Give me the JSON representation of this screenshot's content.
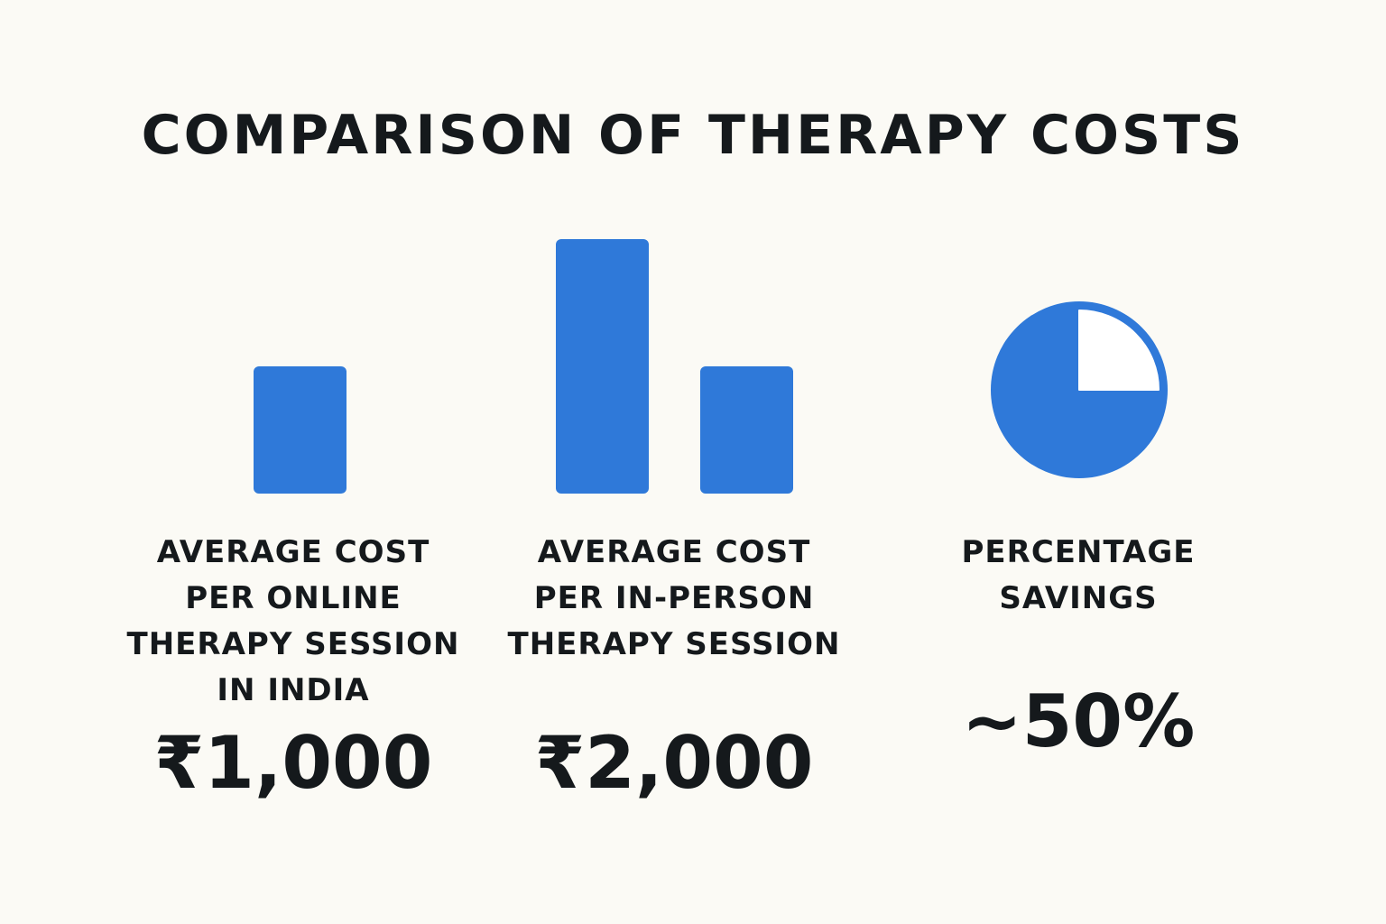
{
  "chart_data": {
    "type": "bar",
    "title": "COMPARISON OF THERAPY COSTS",
    "accent_color": "#2f79d9",
    "bars": [
      {
        "group": "online",
        "value": 1000
      },
      {
        "group": "in_person",
        "value": 2000
      },
      {
        "group": "in_person",
        "value": 1000
      }
    ],
    "panels": [
      {
        "id": "online",
        "label_lines": [
          "AVERAGE COST",
          "PER ONLINE",
          "THERAPY SESSION",
          "IN INDIA"
        ],
        "value_text": "₹1,000",
        "value": 1000
      },
      {
        "id": "in_person",
        "label_lines": [
          "AVERAGE COST",
          "PER IN-PERSON",
          "THERAPY SESSION"
        ],
        "value_text": "₹2,000",
        "value": 2000
      },
      {
        "id": "savings",
        "label_lines": [
          "PERCENTAGE",
          "SAVINGS"
        ],
        "value_text": "~50%",
        "pie_filled_fraction": 0.75,
        "pie_cutout_fraction": 0.25
      }
    ]
  }
}
